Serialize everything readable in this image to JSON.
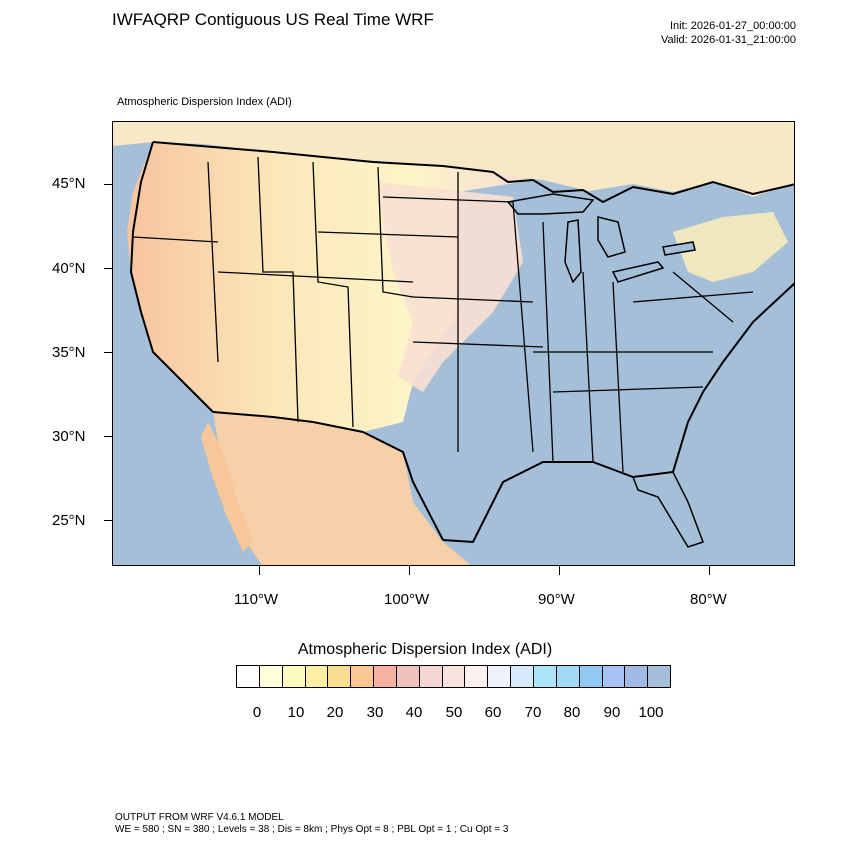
{
  "header": {
    "title": "IWFAQRP Contiguous US Real Time WRF",
    "init": "Init: 2026-01-27_00:00:00",
    "valid": "Valid: 2026-01-31_21:00:00",
    "subtitle": "Atmospheric Dispersion Index   (ADI)"
  },
  "axes": {
    "lat_labels": [
      "45°N",
      "40°N",
      "35°N",
      "30°N",
      "25°N"
    ],
    "lon_labels": [
      "110°W",
      "100°W",
      "90°W",
      "80°W"
    ]
  },
  "colorbar": {
    "title": "Atmospheric Dispersion Index  (ADI)",
    "labels": [
      "0",
      "10",
      "20",
      "30",
      "40",
      "50",
      "60",
      "70",
      "80",
      "90",
      "100"
    ],
    "colors": [
      "#ffffff",
      "#ffffd9",
      "#fdfbc0",
      "#fbefa5",
      "#f9dd90",
      "#fbc895",
      "#f5b1a2",
      "#f0c2bc",
      "#f6d6d3",
      "#f9e3e1",
      "#fdf1f1",
      "#eef3fb",
      "#d7e9fb",
      "#abe4f9",
      "#a2daf6",
      "#91c9f2",
      "#a6c2f2",
      "#9fbbe5",
      "#a6bfd9"
    ]
  },
  "map_colors": {
    "ocean": "#a6bfd9",
    "land_low": "#a6bfd9",
    "land_mid": "#f7dfc4",
    "land_high": "#fdf6c0",
    "terrain_hot": "#f7b39a",
    "border": "#000000"
  },
  "footer": {
    "model": "OUTPUT FROM WRF V4.6.1 MODEL",
    "settings": "WE = 580 ; SN = 380 ; Levels = 38 ; Dis = 8km ; Phys Opt = 8 ; PBL Opt = 1 ; Cu Opt = 3"
  }
}
